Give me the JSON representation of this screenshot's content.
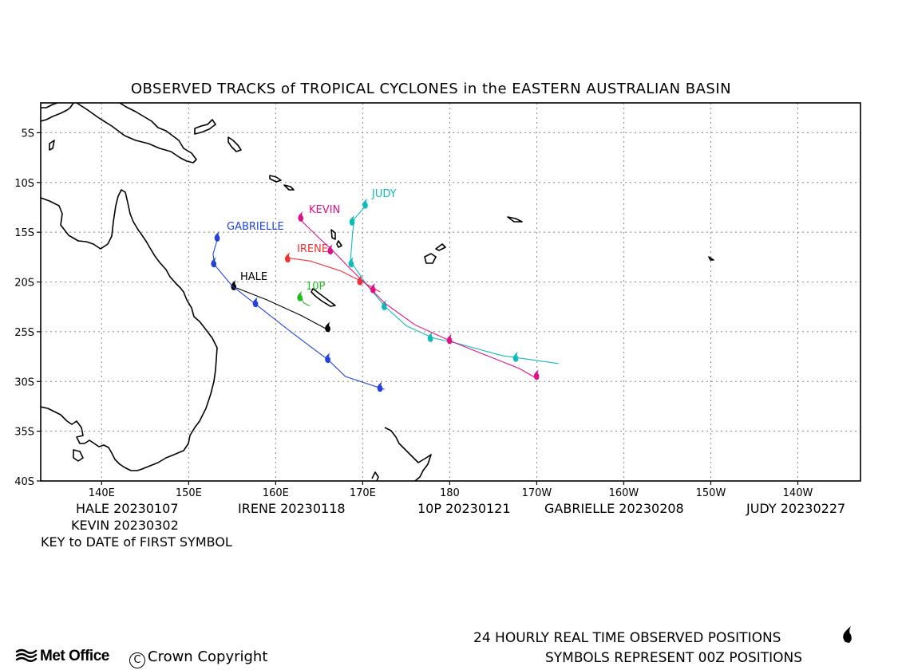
{
  "title": "OBSERVED TRACKS of TROPICAL CYCLONES in the EASTERN AUSTRALIAN BASIN",
  "axes": {
    "lat_labels": [
      "5S",
      "10S",
      "15S",
      "20S",
      "25S",
      "30S",
      "35S",
      "40S"
    ],
    "lon_labels": [
      "140E",
      "150E",
      "160E",
      "170E",
      "180",
      "170W",
      "160W",
      "150W",
      "140W"
    ]
  },
  "storms": [
    {
      "name": "HALE",
      "color": "#000000",
      "label": "HALE",
      "first_date": "20230107",
      "track": [
        [
          155.5,
          -20.6
        ],
        [
          159,
          -21.8
        ],
        [
          163,
          -23.4
        ],
        [
          166.2,
          -24.9
        ]
      ],
      "symbols": [
        [
          155.2,
          -20.4
        ],
        [
          166,
          -24.6
        ]
      ]
    },
    {
      "name": "IRENE",
      "color": "#ee3333",
      "label": "IRENE",
      "first_date": "20230118",
      "track": [
        [
          161.5,
          -17.6
        ],
        [
          164,
          -17.9
        ],
        [
          167.5,
          -18.9
        ],
        [
          170,
          -20
        ],
        [
          172,
          -21
        ]
      ],
      "symbols": [
        [
          161.4,
          -17.6
        ],
        [
          169.7,
          -19.9
        ]
      ]
    },
    {
      "name": "10P",
      "color": "#22bb22",
      "label": "10P",
      "first_date": "20230121",
      "track": [
        [
          163,
          -21.6
        ],
        [
          163.2,
          -22.1
        ],
        [
          163.9,
          -22.4
        ]
      ],
      "symbols": [
        [
          162.8,
          -21.5
        ]
      ]
    },
    {
      "name": "GABRIELLE",
      "color": "#2244dd",
      "label": "GABRIELLE",
      "first_date": "20230208",
      "track": [
        [
          153.3,
          -15.7
        ],
        [
          152.8,
          -17.2
        ],
        [
          153,
          -18.3
        ],
        [
          155,
          -20.4
        ],
        [
          157.5,
          -22.1
        ],
        [
          161,
          -24.5
        ],
        [
          164,
          -26.5
        ],
        [
          166,
          -27.8
        ],
        [
          168,
          -29.5
        ],
        [
          172.5,
          -30.8
        ]
      ],
      "symbols": [
        [
          153.3,
          -15.5
        ],
        [
          152.9,
          -18.1
        ],
        [
          157.7,
          -22.1
        ],
        [
          166,
          -27.7
        ],
        [
          172,
          -30.6
        ]
      ]
    },
    {
      "name": "JUDY",
      "color": "#11bbbb",
      "label": "JUDY",
      "first_date": "20230227",
      "track": [
        [
          170.5,
          -12.2
        ],
        [
          169,
          -13.7
        ],
        [
          168.8,
          -15.5
        ],
        [
          168.6,
          -17.9
        ],
        [
          170.4,
          -20.2
        ],
        [
          172.5,
          -22.4
        ],
        [
          175,
          -24.4
        ],
        [
          178,
          -25.6
        ],
        [
          181,
          -26.2
        ],
        [
          186,
          -27.4
        ],
        [
          192.5,
          -28.2
        ]
      ],
      "symbols": [
        [
          170.3,
          -12.2
        ],
        [
          168.8,
          -13.9
        ],
        [
          168.7,
          -18.1
        ],
        [
          172.5,
          -22.4
        ],
        [
          177.8,
          -25.6
        ],
        [
          187.6,
          -27.6
        ]
      ]
    },
    {
      "name": "KEVIN",
      "color": "#dd1188",
      "label": "KEVIN",
      "first_date": "20230302",
      "track": [
        [
          162.9,
          -13.8
        ],
        [
          165,
          -15.6
        ],
        [
          166.5,
          -16.8
        ],
        [
          168.5,
          -18.6
        ],
        [
          170.6,
          -20.4
        ],
        [
          172.5,
          -22.1
        ],
        [
          176,
          -24.3
        ],
        [
          180,
          -25.9
        ],
        [
          184,
          -27.3
        ],
        [
          188,
          -28.7
        ],
        [
          190,
          -29.7
        ]
      ],
      "symbols": [
        [
          162.9,
          -13.5
        ],
        [
          166.3,
          -16.8
        ],
        [
          171.2,
          -20.7
        ],
        [
          180,
          -25.8
        ],
        [
          190,
          -29.4
        ]
      ]
    }
  ],
  "key_caption": "KEY to DATE of FIRST SYMBOL",
  "footer": {
    "line1": "24 HOURLY REAL TIME OBSERVED POSITIONS",
    "line2": "SYMBOLS REPRESENT 00Z POSITIONS",
    "logo": "Met Office",
    "copyright_mark": "C",
    "copyright": "Crown Copyright"
  }
}
